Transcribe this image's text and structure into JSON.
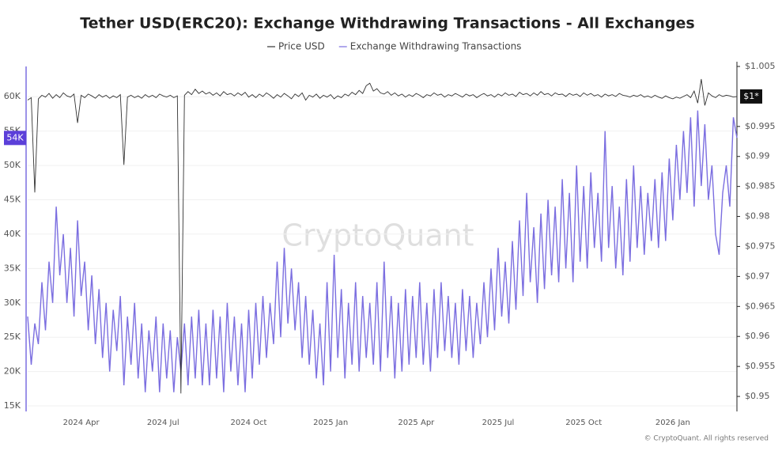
{
  "chart_data": {
    "type": "line",
    "title": "Tether USD(ERC20): Exchange Withdrawing Transactions - All Exchanges",
    "watermark": "CryptoQuant",
    "footer": "© CryptoQuant. All rights reserved",
    "categories": [
      null,
      null,
      null,
      null,
      null,
      null,
      null,
      null,
      null,
      null,
      null,
      null,
      null,
      null,
      null,
      "2024 Apr",
      null,
      null,
      null,
      null,
      null,
      null,
      null,
      null,
      null,
      null,
      null,
      null,
      null,
      null,
      null,
      null,
      null,
      null,
      null,
      null,
      null,
      null,
      "2024 Jul",
      null,
      null,
      null,
      null,
      null,
      null,
      null,
      null,
      null,
      null,
      null,
      null,
      null,
      null,
      null,
      null,
      null,
      null,
      null,
      null,
      null,
      null,
      null,
      "2024 Oct",
      null,
      null,
      null,
      null,
      null,
      null,
      null,
      null,
      null,
      null,
      null,
      null,
      null,
      null,
      null,
      null,
      null,
      null,
      null,
      null,
      null,
      null,
      "2025 Jan",
      null,
      null,
      null,
      null,
      null,
      null,
      null,
      null,
      null,
      null,
      null,
      null,
      null,
      null,
      null,
      null,
      null,
      null,
      null,
      null,
      null,
      null,
      null,
      "2025 Apr",
      null,
      null,
      null,
      null,
      null,
      null,
      null,
      null,
      null,
      null,
      null,
      null,
      null,
      null,
      null,
      null,
      null,
      null,
      null,
      null,
      null,
      null,
      "2025 Jul",
      null,
      null,
      null,
      null,
      null,
      null,
      null,
      null,
      null,
      null,
      null,
      null,
      null,
      null,
      null,
      null,
      null,
      null,
      null,
      null,
      null,
      null,
      null,
      "2025 Oct",
      null,
      null,
      null,
      null,
      null,
      null,
      null,
      null,
      null,
      null,
      null,
      null,
      null,
      null,
      null,
      null,
      null,
      null,
      null,
      null,
      null,
      null,
      null,
      null,
      "2026 Jan",
      null,
      null,
      null,
      null,
      null,
      null,
      null,
      null,
      null,
      null,
      null,
      null,
      null,
      null,
      null,
      null,
      null,
      null
    ],
    "series": [
      {
        "name": "Price USD",
        "color": "#333333",
        "axis": "y2",
        "current_label": "$1*",
        "values": [
          0.9994,
          0.9998,
          0.984,
          0.9996,
          1.0002,
          0.9999,
          1.0005,
          0.9997,
          1.0003,
          0.9998,
          1.0006,
          1.0001,
          0.9999,
          1.0004,
          0.9956,
          1.0002,
          0.9998,
          1.0004,
          1.0001,
          0.9997,
          1.0003,
          0.9999,
          1.0002,
          0.9997,
          1.0001,
          0.9998,
          1.0003,
          0.9886,
          0.9999,
          1.0002,
          0.9998,
          1.0001,
          0.9997,
          1.0003,
          0.9999,
          1.0002,
          0.9998,
          1.0004,
          1.0001,
          0.9999,
          1.0002,
          0.9998,
          1.0001,
          0.9505,
          1.0002,
          1.0008,
          1.0003,
          1.0012,
          1.0005,
          1.0009,
          1.0004,
          1.0007,
          1.0002,
          1.0006,
          1.0001,
          1.0008,
          1.0003,
          1.0005,
          1.0001,
          1.0006,
          1.0002,
          1.0007,
          0.9999,
          1.0003,
          0.9998,
          1.0004,
          1.0,
          1.0006,
          1.0002,
          0.9997,
          1.0003,
          0.9999,
          1.0005,
          1.0001,
          0.9996,
          1.0004,
          1.0,
          1.0006,
          0.9994,
          1.0002,
          0.9999,
          1.0004,
          0.9997,
          1.0002,
          0.9999,
          1.0003,
          0.9996,
          1.0001,
          0.9998,
          1.0004,
          1.0001,
          1.0007,
          1.0003,
          1.001,
          1.0005,
          1.0018,
          1.0022,
          1.0009,
          1.0013,
          1.0006,
          1.0004,
          1.0008,
          1.0002,
          1.0006,
          1.0001,
          1.0004,
          0.9999,
          1.0003,
          1.0,
          1.0005,
          1.0002,
          0.9998,
          1.0003,
          1.0001,
          1.0006,
          1.0002,
          1.0004,
          0.9999,
          1.0003,
          1.0001,
          1.0005,
          1.0002,
          0.9999,
          1.0004,
          1.0001,
          1.0003,
          0.9998,
          1.0002,
          1.0005,
          1.0001,
          1.0003,
          0.9999,
          1.0004,
          1.0001,
          1.0006,
          1.0002,
          1.0004,
          1.0,
          1.0007,
          1.0003,
          1.0005,
          1.0001,
          1.0006,
          1.0002,
          1.0008,
          1.0003,
          1.0005,
          1.0001,
          1.0006,
          1.0003,
          1.0004,
          1.0,
          1.0005,
          1.0002,
          1.0004,
          1.0,
          1.0006,
          1.0002,
          1.0005,
          1.0001,
          1.0003,
          0.9999,
          1.0004,
          1.0001,
          1.0003,
          1.0,
          1.0005,
          1.0002,
          1.0001,
          0.9999,
          1.0002,
          1.0,
          1.0003,
          0.9999,
          1.0001,
          0.9998,
          1.0002,
          0.9999,
          0.9997,
          1.0001,
          0.9998,
          0.9996,
          0.9999,
          0.9997,
          1.0,
          1.0003,
          0.9998,
          1.0009,
          0.9989,
          1.0029,
          0.9985,
          1.0006,
          1.0001,
          0.9998,
          1.0003,
          1.0,
          1.0002,
          1.0001,
          0.9999,
          1.0
        ]
      },
      {
        "name": "Exchange Withdrawing Transactions",
        "color": "#7b6ee0",
        "current_label": "54K",
        "values": [
          28,
          21,
          27,
          24,
          33,
          26,
          36,
          30,
          44,
          34,
          40,
          30,
          38,
          28,
          42,
          31,
          36,
          26,
          34,
          24,
          32,
          22,
          30,
          20,
          29,
          23,
          31,
          18,
          28,
          21,
          30,
          19,
          27,
          17,
          26,
          20,
          28,
          17,
          27,
          19,
          26,
          17,
          25,
          20,
          27,
          18,
          28,
          19,
          29,
          18,
          27,
          18,
          29,
          19,
          28,
          17,
          30,
          20,
          28,
          18,
          27,
          17,
          29,
          19,
          30,
          21,
          31,
          22,
          30,
          24,
          36,
          25,
          38,
          27,
          35,
          26,
          33,
          22,
          31,
          21,
          29,
          19,
          27,
          18,
          33,
          20,
          37,
          22,
          32,
          19,
          30,
          21,
          33,
          20,
          31,
          22,
          30,
          21,
          33,
          20,
          36,
          22,
          31,
          19,
          30,
          20,
          32,
          21,
          31,
          22,
          33,
          21,
          30,
          20,
          32,
          22,
          33,
          23,
          31,
          22,
          30,
          21,
          32,
          23,
          31,
          22,
          30,
          24,
          33,
          25,
          35,
          26,
          38,
          28,
          36,
          27,
          39,
          29,
          42,
          31,
          46,
          33,
          41,
          30,
          43,
          32,
          45,
          34,
          44,
          33,
          48,
          35,
          46,
          33,
          50,
          36,
          47,
          35,
          49,
          38,
          46,
          36,
          55,
          38,
          47,
          35,
          44,
          34,
          48,
          36,
          50,
          38,
          47,
          37,
          46,
          39,
          48,
          38,
          49,
          39,
          51,
          42,
          53,
          45,
          55,
          46,
          57,
          44,
          58,
          47,
          56,
          45,
          50,
          40,
          37,
          46,
          50,
          44,
          57,
          54
        ]
      }
    ],
    "ylim": [
      14.2,
      64.4
    ],
    "yticks": [
      {
        "value": 15,
        "label": "15K"
      },
      {
        "value": 20,
        "label": "20K"
      },
      {
        "value": 25,
        "label": "25K"
      },
      {
        "value": 30,
        "label": "30K"
      },
      {
        "value": 35,
        "label": "35K"
      },
      {
        "value": 40,
        "label": "40K"
      },
      {
        "value": 45,
        "label": "45K"
      },
      {
        "value": 50,
        "label": "50K"
      },
      {
        "value": 55,
        "label": "55K"
      },
      {
        "value": 60,
        "label": "60K"
      }
    ],
    "y2lim": [
      0.9475,
      1.005
    ],
    "y2ticks": [
      {
        "value": 0.95,
        "label": "$0.95"
      },
      {
        "value": 0.955,
        "label": "$0.955"
      },
      {
        "value": 0.96,
        "label": "$0.96"
      },
      {
        "value": 0.965,
        "label": "$0.965"
      },
      {
        "value": 0.97,
        "label": "$0.97"
      },
      {
        "value": 0.975,
        "label": "$0.975"
      },
      {
        "value": 0.98,
        "label": "$0.98"
      },
      {
        "value": 0.985,
        "label": "$0.985"
      },
      {
        "value": 0.99,
        "label": "$0.99"
      },
      {
        "value": 0.995,
        "label": "$0.995"
      },
      {
        "value": 1.005,
        "label": "$1.005"
      }
    ],
    "grid": true
  }
}
